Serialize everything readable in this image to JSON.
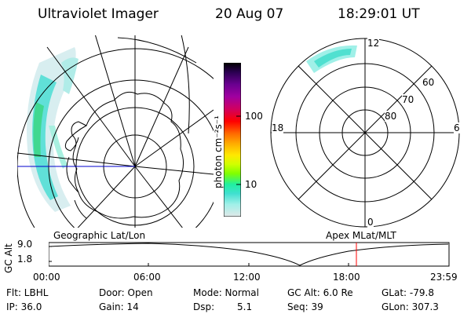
{
  "header": {
    "instrument": "Ultraviolet Imager",
    "date": "20 Aug 07",
    "time": "18:29:01 UT"
  },
  "colorbar": {
    "unit_label": "photon cm⁻²s⁻¹",
    "ticks": [
      "100",
      "10"
    ],
    "colors": [
      "#000000",
      "#2a0050",
      "#6a0090",
      "#a000a0",
      "#d00060",
      "#ff0000",
      "#ff6a00",
      "#ffb000",
      "#ffe800",
      "#d0ff00",
      "#80ff00",
      "#20f0a0",
      "#40e0d0",
      "#a0f0e8",
      "#e0e8e8"
    ]
  },
  "left_map": {
    "caption": "Geographic Lat/Lon"
  },
  "right_map": {
    "caption": "Apex MLat/MLT",
    "mlt_labels": {
      "top": "12",
      "left": "18",
      "right": "6",
      "bottom": "0"
    },
    "lat_labels": [
      "60",
      "70",
      "80"
    ]
  },
  "altitude_plot": {
    "ylabel": "GC Alt",
    "y_ticks": [
      "9.0",
      "1.8"
    ],
    "x_ticks": [
      "00:00",
      "06:00",
      "12:00",
      "18:00",
      "23:59"
    ],
    "marker_time": "18:29",
    "marker_color": "#ff0000"
  },
  "footer": {
    "row1": {
      "filter": "Flt: LBHL",
      "door": "Door: Open",
      "mode": "Mode: Normal",
      "gc_alt": "GC Alt: 6.0 Re",
      "glat": "GLat: -79.8"
    },
    "row2": {
      "ip": "IP: 36.0",
      "gain": "Gain: 14",
      "dsp_label": "Dsp:",
      "dsp_value": "5.1",
      "seq": "Seq: 39",
      "glon": "GLon: 307.3"
    }
  }
}
